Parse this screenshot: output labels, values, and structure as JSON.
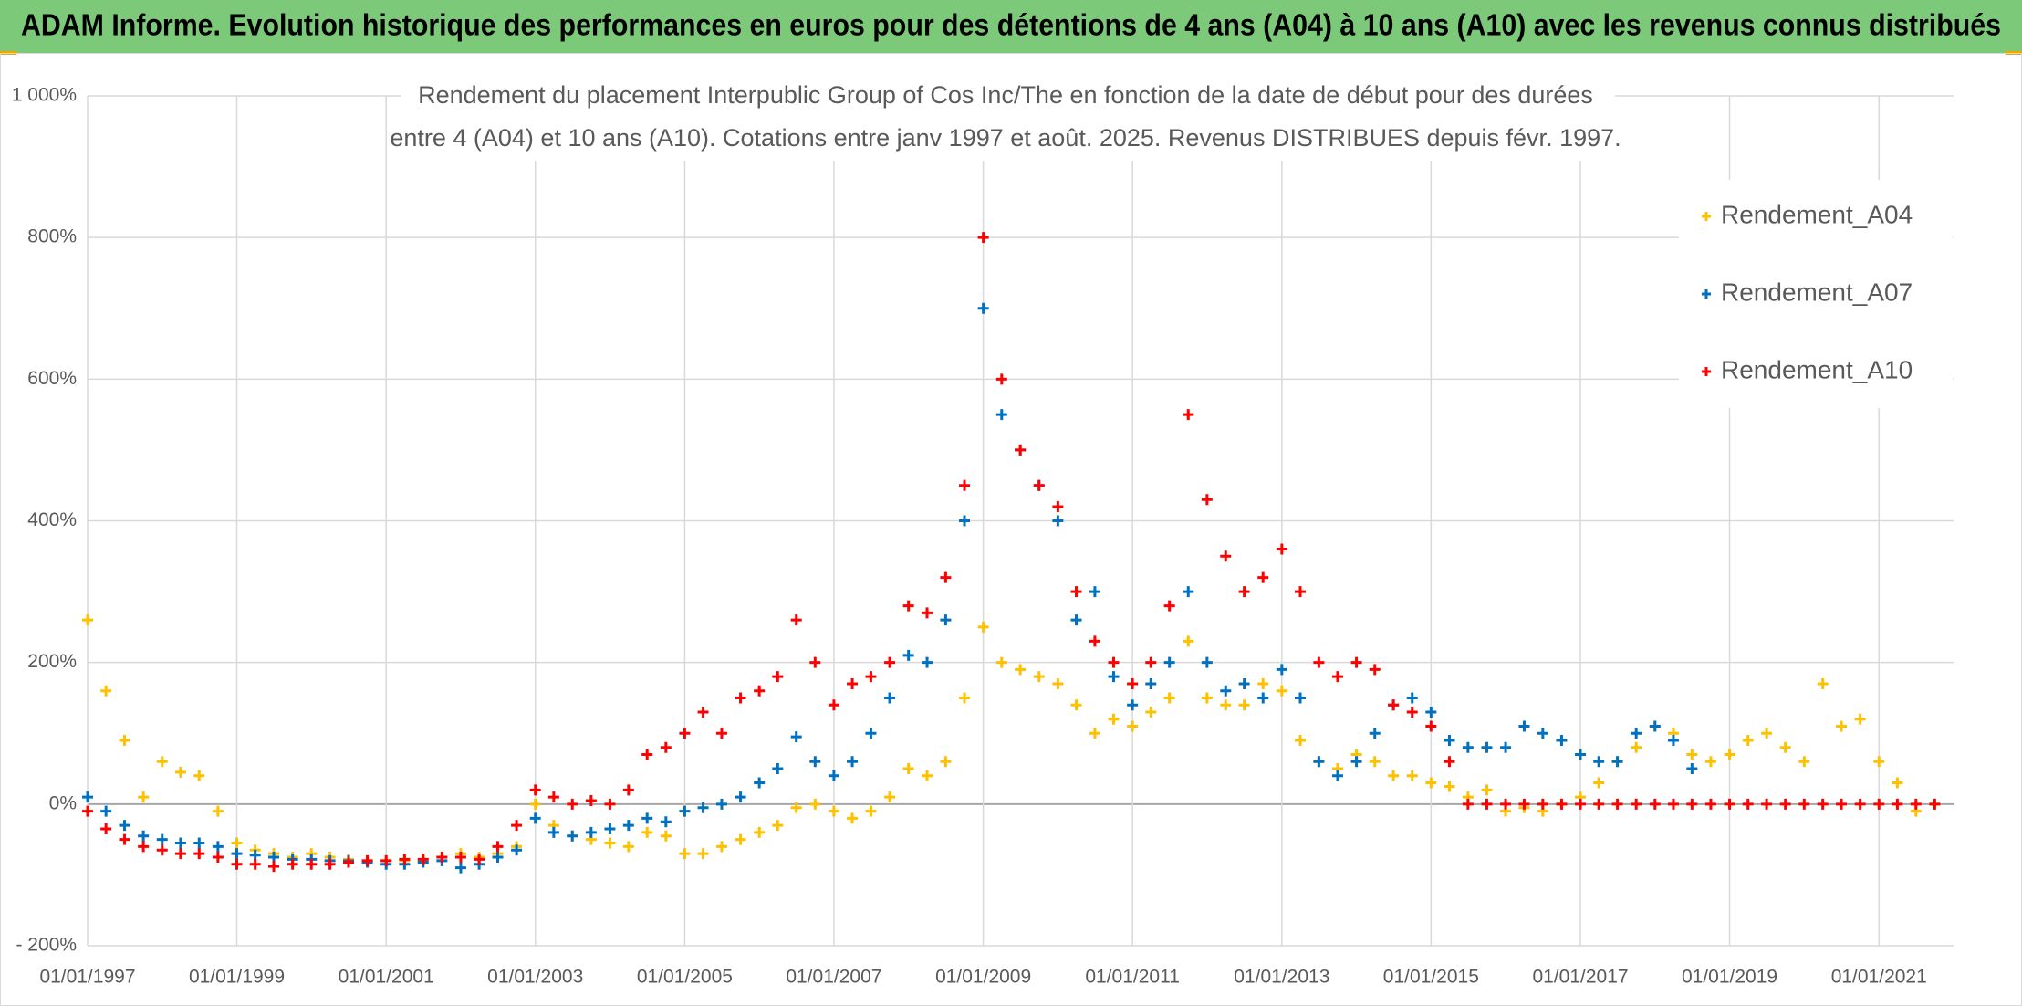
{
  "chart_data": {
    "type": "scatter",
    "title": "ADAM Informe. Evolution historique des performances en euros pour des détentions de 4 ans (A04) à 10 ans (A10) avec les revenus connus distribués",
    "subtitle": [
      "Rendement du placement Interpublic Group of Cos Inc/The en fonction de la date de début pour des durées",
      "entre 4 (A04) et 10 ans (A10). Cotations entre janv 1997 et août. 2025. Revenus DISTRIBUES depuis févr. 1997."
    ],
    "x": [
      "1997-01-01",
      "1997-04-01",
      "1997-07-01",
      "1997-10-01",
      "1998-01-01",
      "1998-04-01",
      "1998-07-01",
      "1998-10-01",
      "1999-01-01",
      "1999-04-01",
      "1999-07-01",
      "1999-10-01",
      "2000-01-01",
      "2000-04-01",
      "2000-07-01",
      "2000-10-01",
      "2001-01-01",
      "2001-04-01",
      "2001-07-01",
      "2001-10-01",
      "2002-01-01",
      "2002-04-01",
      "2002-07-01",
      "2002-10-01",
      "2003-01-01",
      "2003-04-01",
      "2003-07-01",
      "2003-10-01",
      "2004-01-01",
      "2004-04-01",
      "2004-07-01",
      "2004-10-01",
      "2005-01-01",
      "2005-04-01",
      "2005-07-01",
      "2005-10-01",
      "2006-01-01",
      "2006-04-01",
      "2006-07-01",
      "2006-10-01",
      "2007-01-01",
      "2007-04-01",
      "2007-07-01",
      "2007-10-01",
      "2008-01-01",
      "2008-04-01",
      "2008-07-01",
      "2008-10-01",
      "2009-01-01",
      "2009-04-01",
      "2009-07-01",
      "2009-10-01",
      "2010-01-01",
      "2010-04-01",
      "2010-07-01",
      "2010-10-01",
      "2011-01-01",
      "2011-04-01",
      "2011-07-01",
      "2011-10-01",
      "2012-01-01",
      "2012-04-01",
      "2012-07-01",
      "2012-10-01",
      "2013-01-01",
      "2013-04-01",
      "2013-07-01",
      "2013-10-01",
      "2014-01-01",
      "2014-04-01",
      "2014-07-01",
      "2014-10-01",
      "2015-01-01",
      "2015-04-01",
      "2015-07-01",
      "2015-10-01",
      "2016-01-01",
      "2016-04-01",
      "2016-07-01",
      "2016-10-01",
      "2017-01-01",
      "2017-04-01",
      "2017-07-01",
      "2017-10-01",
      "2018-01-01",
      "2018-04-01",
      "2018-07-01",
      "2018-10-01",
      "2019-01-01",
      "2019-04-01",
      "2019-07-01",
      "2019-10-01",
      "2020-01-01",
      "2020-04-01",
      "2020-07-01",
      "2020-10-01",
      "2021-01-01",
      "2021-04-01",
      "2021-07-01",
      "2021-10-01"
    ],
    "series": [
      {
        "name": "Rendement_A04",
        "color": "#ffc000",
        "values": [
          260,
          160,
          90,
          10,
          60,
          45,
          40,
          -10,
          -55,
          -65,
          -70,
          -75,
          -70,
          -75,
          -78,
          -80,
          -80,
          -80,
          -78,
          -75,
          -70,
          -75,
          -70,
          -60,
          0,
          -30,
          -45,
          -50,
          -55,
          -60,
          -40,
          -45,
          -70,
          -70,
          -60,
          -50,
          -40,
          -30,
          -5,
          0,
          -10,
          -20,
          -10,
          10,
          50,
          40,
          60,
          150,
          250,
          200,
          190,
          180,
          170,
          140,
          100,
          120,
          110,
          130,
          150,
          230,
          150,
          140,
          140,
          170,
          160,
          90,
          60,
          50,
          70,
          60,
          40,
          40,
          30,
          25,
          10,
          20,
          -10,
          -5,
          -10,
          0,
          10,
          30,
          60,
          80,
          110,
          100,
          70,
          60,
          70,
          90,
          100,
          80,
          60,
          170,
          110,
          120,
          60,
          30,
          -10,
          0
        ]
      },
      {
        "name": "Rendement_A07",
        "color": "#0070c0",
        "values": [
          10,
          -10,
          -30,
          -45,
          -50,
          -55,
          -55,
          -60,
          -70,
          -72,
          -75,
          -78,
          -78,
          -80,
          -80,
          -82,
          -85,
          -85,
          -82,
          -80,
          -90,
          -85,
          -75,
          -65,
          -20,
          -40,
          -45,
          -40,
          -35,
          -30,
          -20,
          -25,
          -10,
          -5,
          0,
          10,
          30,
          50,
          95,
          60,
          40,
          60,
          100,
          150,
          210,
          200,
          260,
          400,
          700,
          550,
          500,
          450,
          400,
          260,
          300,
          180,
          140,
          170,
          200,
          300,
          200,
          160,
          170,
          150,
          190,
          150,
          60,
          40,
          60,
          100,
          140,
          150,
          130,
          90,
          80,
          80,
          80,
          110,
          100,
          90,
          70,
          60,
          60,
          100,
          110,
          90,
          50,
          null,
          null,
          null,
          null,
          null,
          null,
          null,
          null,
          null,
          null,
          null,
          null,
          null
        ]
      },
      {
        "name": "Rendement_A10",
        "color": "#ff0000",
        "values": [
          -10,
          -35,
          -50,
          -60,
          -65,
          -70,
          -70,
          -75,
          -85,
          -85,
          -88,
          -85,
          -85,
          -85,
          -82,
          -80,
          -80,
          -78,
          -78,
          -75,
          -75,
          -78,
          -60,
          -30,
          20,
          10,
          0,
          5,
          0,
          20,
          70,
          80,
          100,
          130,
          100,
          150,
          160,
          180,
          260,
          200,
          140,
          170,
          180,
          200,
          280,
          270,
          320,
          450,
          800,
          600,
          500,
          450,
          420,
          300,
          230,
          200,
          170,
          200,
          280,
          550,
          430,
          350,
          300,
          320,
          360,
          300,
          200,
          180,
          200,
          190,
          140,
          130,
          110,
          60,
          0,
          0,
          0,
          0,
          0,
          0,
          0,
          0,
          0,
          0,
          0,
          0,
          0,
          0,
          0,
          0,
          0,
          0,
          0,
          0,
          0,
          0,
          0,
          0,
          0,
          0
        ]
      }
    ],
    "xlim": [
      "1997-01-01",
      "2022-01-01"
    ],
    "xticks": [
      {
        "value": "1997-01-01",
        "label": "01/01/1997"
      },
      {
        "value": "1999-01-01",
        "label": "01/01/1999"
      },
      {
        "value": "2001-01-01",
        "label": "01/01/2001"
      },
      {
        "value": "2003-01-01",
        "label": "01/01/2003"
      },
      {
        "value": "2005-01-01",
        "label": "01/01/2005"
      },
      {
        "value": "2007-01-01",
        "label": "01/01/2007"
      },
      {
        "value": "2009-01-01",
        "label": "01/01/2009"
      },
      {
        "value": "2011-01-01",
        "label": "01/01/2011"
      },
      {
        "value": "2013-01-01",
        "label": "01/01/2013"
      },
      {
        "value": "2015-01-01",
        "label": "01/01/2015"
      },
      {
        "value": "2017-01-01",
        "label": "01/01/2017"
      },
      {
        "value": "2019-01-01",
        "label": "01/01/2019"
      },
      {
        "value": "2021-01-01",
        "label": "01/01/2021"
      }
    ],
    "ylim": [
      -200,
      1000
    ],
    "yticks": [
      {
        "value": -200,
        "label": "- 200%"
      },
      {
        "value": 0,
        "label": "0%"
      },
      {
        "value": 200,
        "label": "200%"
      },
      {
        "value": 400,
        "label": "400%"
      },
      {
        "value": 600,
        "label": "600%"
      },
      {
        "value": 800,
        "label": "800%"
      },
      {
        "value": 1000,
        "label": "1 000%"
      }
    ],
    "grid": true,
    "legend": "top-right"
  }
}
